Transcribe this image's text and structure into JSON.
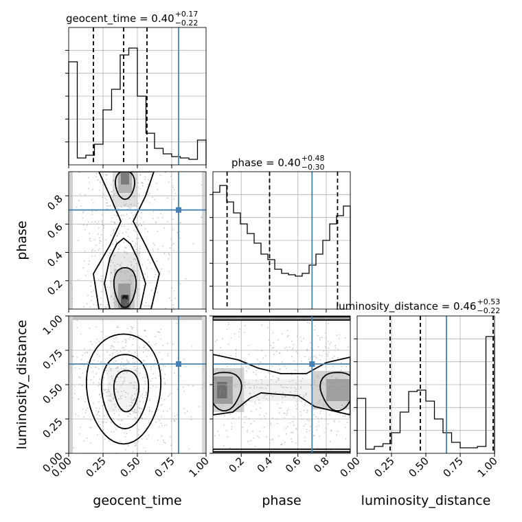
{
  "chart_data": {
    "type": "corner",
    "truth_color": "#4682b4",
    "parameters": [
      "geocent_time",
      "phase",
      "luminosity_distance"
    ],
    "axis_labels": {
      "x": [
        "geocent_time",
        "phase",
        "luminosity_distance"
      ],
      "y": [
        "phase",
        "luminosity_distance"
      ]
    },
    "titles": [
      {
        "prefix": "geocent_time = 0.40",
        "sup": "+0.17",
        "sub": "−0.22"
      },
      {
        "prefix": "phase = 0.40",
        "sup": "+0.48",
        "sub": "−0.30"
      },
      {
        "prefix": "luminosity_distance = 0.46",
        "sup": "+0.53",
        "sub": "−0.22"
      }
    ],
    "ranges": {
      "geocent_time": [
        0,
        1
      ],
      "phase": [
        0,
        0.97
      ],
      "luminosity_distance": [
        0,
        1
      ]
    },
    "ticks": {
      "geocent_time": {
        "values": [
          0,
          0.25,
          0.5,
          0.75,
          1.0
        ],
        "labels": [
          "0.00",
          "0.25",
          "0.50",
          "0.75",
          "1.00"
        ]
      },
      "phase": {
        "values": [
          0.2,
          0.4,
          0.6,
          0.8
        ],
        "labels": [
          "0.2",
          "0.4",
          "0.6",
          "0.8"
        ]
      },
      "luminosity_distance": {
        "values": [
          0,
          0.25,
          0.5,
          0.75,
          1.0
        ],
        "labels": [
          "0.00",
          "0.25",
          "0.50",
          "0.75",
          "1.00"
        ]
      }
    },
    "truths": {
      "geocent_time": 0.8,
      "phase": 0.7,
      "luminosity_distance": 0.65
    },
    "quantiles": {
      "geocent_time": [
        0.18,
        0.4,
        0.57
      ],
      "phase": [
        0.1,
        0.4,
        0.88
      ],
      "luminosity_distance": [
        0.24,
        0.46,
        0.99
      ]
    },
    "histograms": {
      "geocent_time": [
        0.75,
        0.05,
        0.07,
        0.15,
        0.4,
        0.55,
        0.8,
        0.85,
        0.5,
        0.23,
        0.12,
        0.08,
        0.06,
        0.05,
        0.04,
        0.18
      ],
      "phase": [
        0.85,
        0.9,
        0.78,
        0.7,
        0.62,
        0.55,
        0.48,
        0.4,
        0.36,
        0.29,
        0.26,
        0.25,
        0.24,
        0.26,
        0.32,
        0.4,
        0.5,
        0.62,
        0.68,
        0.75
      ],
      "luminosity_distance": [
        0.4,
        0.03,
        0.05,
        0.07,
        0.15,
        0.3,
        0.45,
        0.46,
        0.38,
        0.25,
        0.15,
        0.08,
        0.04,
        0.04,
        0.05,
        0.85
      ]
    },
    "grid": true
  }
}
